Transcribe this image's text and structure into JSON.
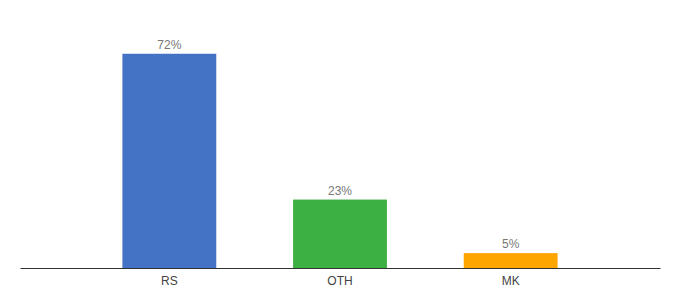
{
  "chart_data": {
    "type": "bar",
    "categories": [
      "RS",
      "OTH",
      "MK"
    ],
    "values": [
      72,
      23,
      5
    ],
    "value_labels": [
      "72%",
      "23%",
      "5%"
    ],
    "colors": [
      "#4472C4",
      "#3CB043",
      "#FFA500"
    ],
    "ylim": [
      0,
      82
    ],
    "data_labels": true,
    "tick_labels": "x"
  }
}
